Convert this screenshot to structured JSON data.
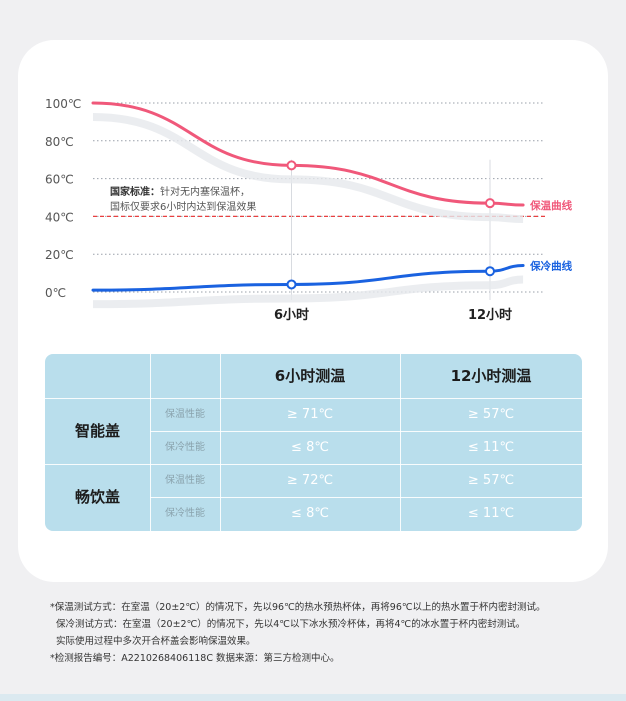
{
  "chart_data": {
    "type": "line",
    "x_categories": [
      "6小时",
      "12小时"
    ],
    "y_ticks": [
      "100℃",
      "80℃",
      "60℃",
      "40℃",
      "20℃",
      "0℃"
    ],
    "ylim": [
      0,
      100
    ],
    "grid": true,
    "series": [
      {
        "name": "保温曲线",
        "color": "#f0587a",
        "x": [
          0,
          6,
          12,
          13
        ],
        "y": [
          100,
          67,
          47,
          46
        ],
        "markers_at": [
          6,
          12
        ]
      },
      {
        "name": "保冷曲线",
        "color": "#1a62e0",
        "x": [
          0,
          6,
          12,
          13
        ],
        "y": [
          1,
          4,
          11,
          14
        ],
        "markers_at": [
          6,
          12
        ]
      }
    ],
    "reference_line": {
      "y": 40,
      "color": "#e94040"
    },
    "annotation": {
      "bold": "国家标准：",
      "line1": "针对无内塞保温杯，",
      "line2": "国标仅要求6小时内达到保温效果"
    }
  },
  "table": {
    "headers": [
      "6小时测温",
      "12小时测温"
    ],
    "groups": [
      {
        "name": "智能盖",
        "rows": [
          {
            "label": "保温性能",
            "v6": "≥ 71℃",
            "v12": "≥ 57℃"
          },
          {
            "label": "保冷性能",
            "v6": "≤ 8℃",
            "v12": "≤ 11℃"
          }
        ]
      },
      {
        "name": "畅饮盖",
        "rows": [
          {
            "label": "保温性能",
            "v6": "≥ 72℃",
            "v12": "≥ 57℃"
          },
          {
            "label": "保冷性能",
            "v6": "≤ 8℃",
            "v12": "≤ 11℃"
          }
        ]
      }
    ]
  },
  "notes": [
    "*保温测试方式：在室温（20±2℃）的情况下，先以96℃的热水预热杯体，再将96℃以上的热水置于杯内密封测试。",
    "保冷测试方式：在室温（20±2℃）的情况下，先以4℃以下冰水预冷杯体，再将4℃的冰水置于杯内密封测试。",
    "实际使用过程中多次开合杯盖会影响保温效果。",
    "*检测报告编号：A2210268406118C  数据来源：第三方检测中心。"
  ]
}
